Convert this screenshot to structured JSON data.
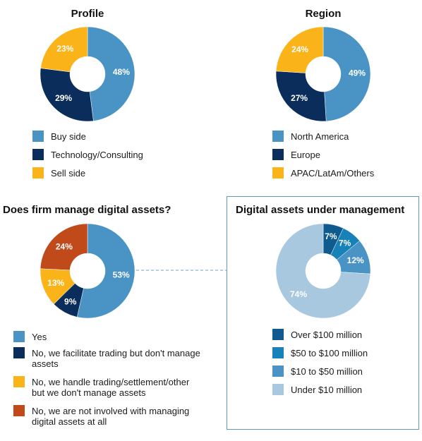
{
  "chart_data": [
    {
      "type": "pie",
      "title": "Profile",
      "categories": [
        "Buy side",
        "Technology/Consulting",
        "Sell side"
      ],
      "values": [
        48,
        29,
        23
      ],
      "value_labels": [
        "48%",
        "29%",
        "23%"
      ],
      "colors": [
        "#4a93c5",
        "#0b2d5b",
        "#fbb31a"
      ],
      "legend_position": "bottom"
    },
    {
      "type": "pie",
      "title": "Region",
      "categories": [
        "North America",
        "Europe",
        "APAC/LatAm/Others"
      ],
      "values": [
        49,
        27,
        24
      ],
      "value_labels": [
        "49%",
        "27%",
        "24%"
      ],
      "colors": [
        "#4a93c5",
        "#0b2d5b",
        "#fbb31a"
      ],
      "legend_position": "bottom"
    },
    {
      "type": "pie",
      "title": "Does firm manage digital assets?",
      "categories": [
        "Yes",
        "No, we facilitate trading but don't manage assets",
        "No, we handle trading/settlement/other but we don't manage assets",
        "No, we are not involved with managing digital assets at all"
      ],
      "values": [
        53,
        9,
        13,
        24
      ],
      "value_labels": [
        "53%",
        "9%",
        "13%",
        "24%"
      ],
      "colors": [
        "#4a93c5",
        "#0b2d5b",
        "#fbb31a",
        "#c14a1b"
      ],
      "legend_position": "bottom"
    },
    {
      "type": "pie",
      "title": "Digital assets under management",
      "categories": [
        "Over $100 million",
        "$50 to $100 million",
        "$10 to $50 million",
        "Under $10 million"
      ],
      "values": [
        7,
        7,
        12,
        74
      ],
      "value_labels": [
        "7%",
        "7%",
        "12%",
        "74%"
      ],
      "colors": [
        "#0f5b8f",
        "#1682b8",
        "#4a93c5",
        "#a8c8e0"
      ],
      "legend_position": "bottom"
    }
  ]
}
